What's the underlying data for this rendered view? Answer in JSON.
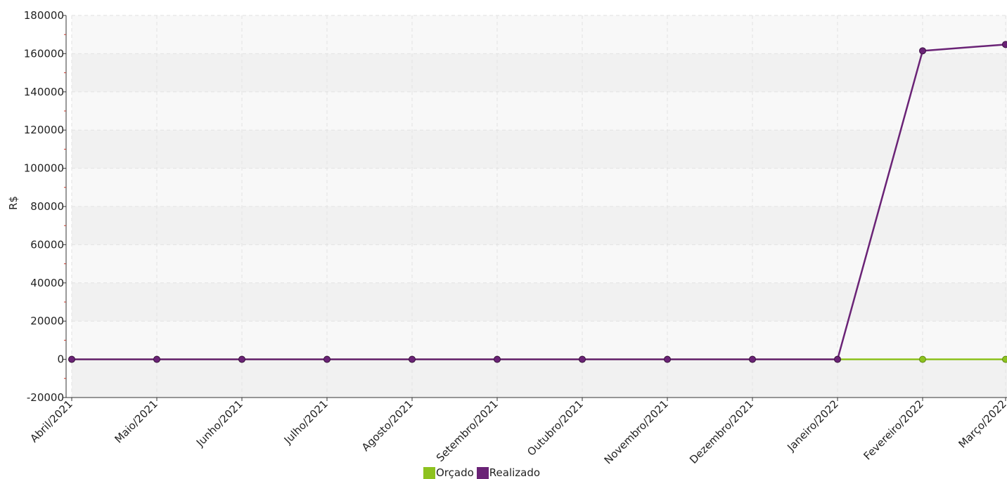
{
  "chart_data": {
    "type": "line",
    "title": "",
    "xlabel": "",
    "ylabel": "R$",
    "ylim": [
      -20000,
      180000
    ],
    "yticks": [
      -20000,
      0,
      20000,
      40000,
      60000,
      80000,
      100000,
      120000,
      140000,
      160000,
      180000
    ],
    "categories": [
      "Abril/2021",
      "Maio/2021",
      "Junho/2021",
      "Julho/2021",
      "Agosto/2021",
      "Setembro/2021",
      "Outubro/2021",
      "Novembro/2021",
      "Dezembro/2021",
      "Janeiro/2022",
      "Fevereiro/2022",
      "Março/2022"
    ],
    "series": [
      {
        "name": "Orçado",
        "color": "#8dc21f",
        "values": [
          0,
          0,
          0,
          0,
          0,
          0,
          0,
          0,
          0,
          0,
          0,
          0
        ]
      },
      {
        "name": "Realizado",
        "color": "#6a2376",
        "values": [
          0,
          0,
          0,
          0,
          0,
          0,
          0,
          0,
          0,
          0,
          161500,
          164800
        ]
      }
    ],
    "grid": true,
    "legend_position": "bottom-center"
  }
}
